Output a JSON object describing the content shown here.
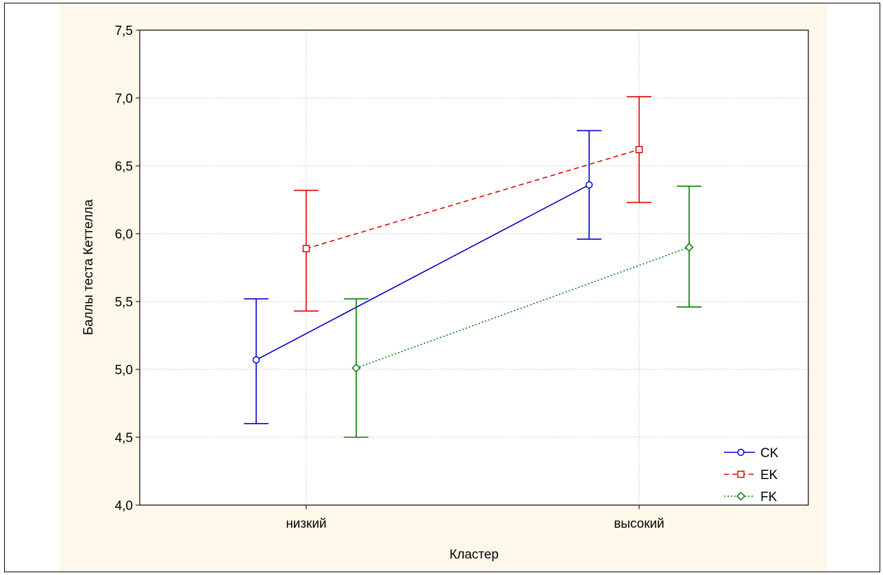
{
  "chart_data": {
    "type": "line",
    "title": "",
    "xlabel": "Кластер",
    "ylabel": "Баллы теста Кеттелла",
    "categories": [
      "низкий",
      "высокий"
    ],
    "ylim": [
      4.0,
      7.5
    ],
    "yticks": [
      "4,0",
      "4,5",
      "5,0",
      "5,5",
      "6,0",
      "6,5",
      "7,0",
      "7,5"
    ],
    "grid": true,
    "legend_position": "bottom-right",
    "error_bars": true,
    "series": [
      {
        "name": "CK",
        "color": "#0000cc",
        "marker": "circle",
        "line": "solid",
        "values": [
          5.07,
          6.36
        ],
        "lower": [
          4.6,
          5.96
        ],
        "upper": [
          5.52,
          6.76
        ]
      },
      {
        "name": "EK",
        "color": "#e00000",
        "marker": "square",
        "line": "dashed",
        "values": [
          5.89,
          6.62
        ],
        "lower": [
          5.43,
          6.23
        ],
        "upper": [
          6.32,
          7.01
        ]
      },
      {
        "name": "FK",
        "color": "#007a00",
        "marker": "diamond",
        "line": "dotted",
        "values": [
          5.01,
          5.9
        ],
        "lower": [
          4.5,
          5.46
        ],
        "upper": [
          5.52,
          6.35
        ]
      }
    ]
  }
}
